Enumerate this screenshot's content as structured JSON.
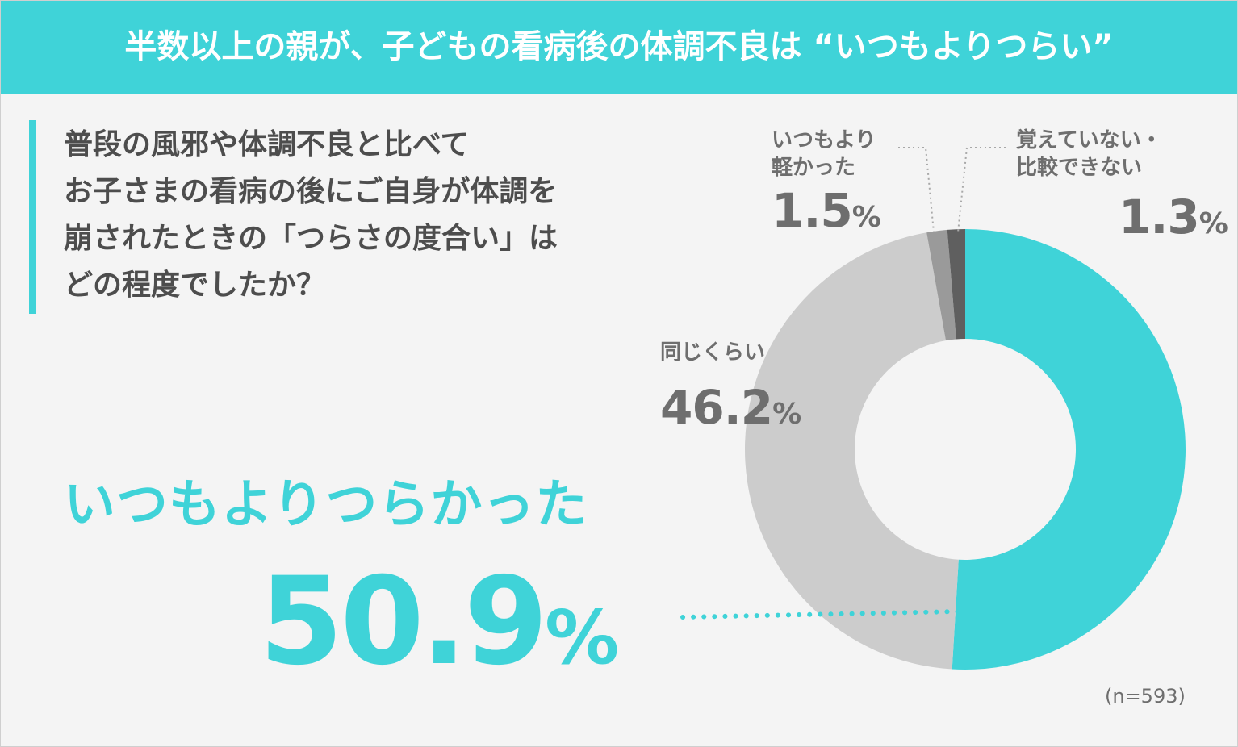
{
  "header": {
    "title": "半数以上の親が、子どもの看病後の体調不良は “いつもよりつらい”"
  },
  "question": {
    "lines": [
      "普段の風邪や体調不良と比べて",
      "お子さまの看病の後にご自身が体調を",
      "崩されたときの「つらさの度合い」は",
      "どの程度でしたか？"
    ]
  },
  "highlight": {
    "label": "いつもよりつらかった",
    "value": "50.9",
    "unit": "%"
  },
  "sample_size": "(n=593)",
  "colors": {
    "accent": "#3fd3d8",
    "same": "#cccccc",
    "lighter": "#9a9a9a",
    "dont_know": "#5f5f5f",
    "text": "#4d4d4d"
  },
  "chart_data": {
    "type": "pie",
    "donut": true,
    "unit": "%",
    "start": "12 o'clock",
    "direction": "clockwise",
    "categories": [
      "いつもよりつらかった",
      "同じくらい",
      "いつもより軽かった",
      "覚えていない・比較できない"
    ],
    "values": [
      50.9,
      46.2,
      1.5,
      1.3
    ],
    "labels": [
      {
        "name": "",
        "value": "50.9"
      },
      {
        "name": "同じくらい",
        "value": "46.2"
      },
      {
        "name_lines": [
          "いつもより",
          "軽かった"
        ],
        "value": "1.5"
      },
      {
        "name_lines": [
          "覚えていない・",
          "比較できない"
        ],
        "value": "1.3"
      }
    ],
    "sample_size": "n=593"
  }
}
